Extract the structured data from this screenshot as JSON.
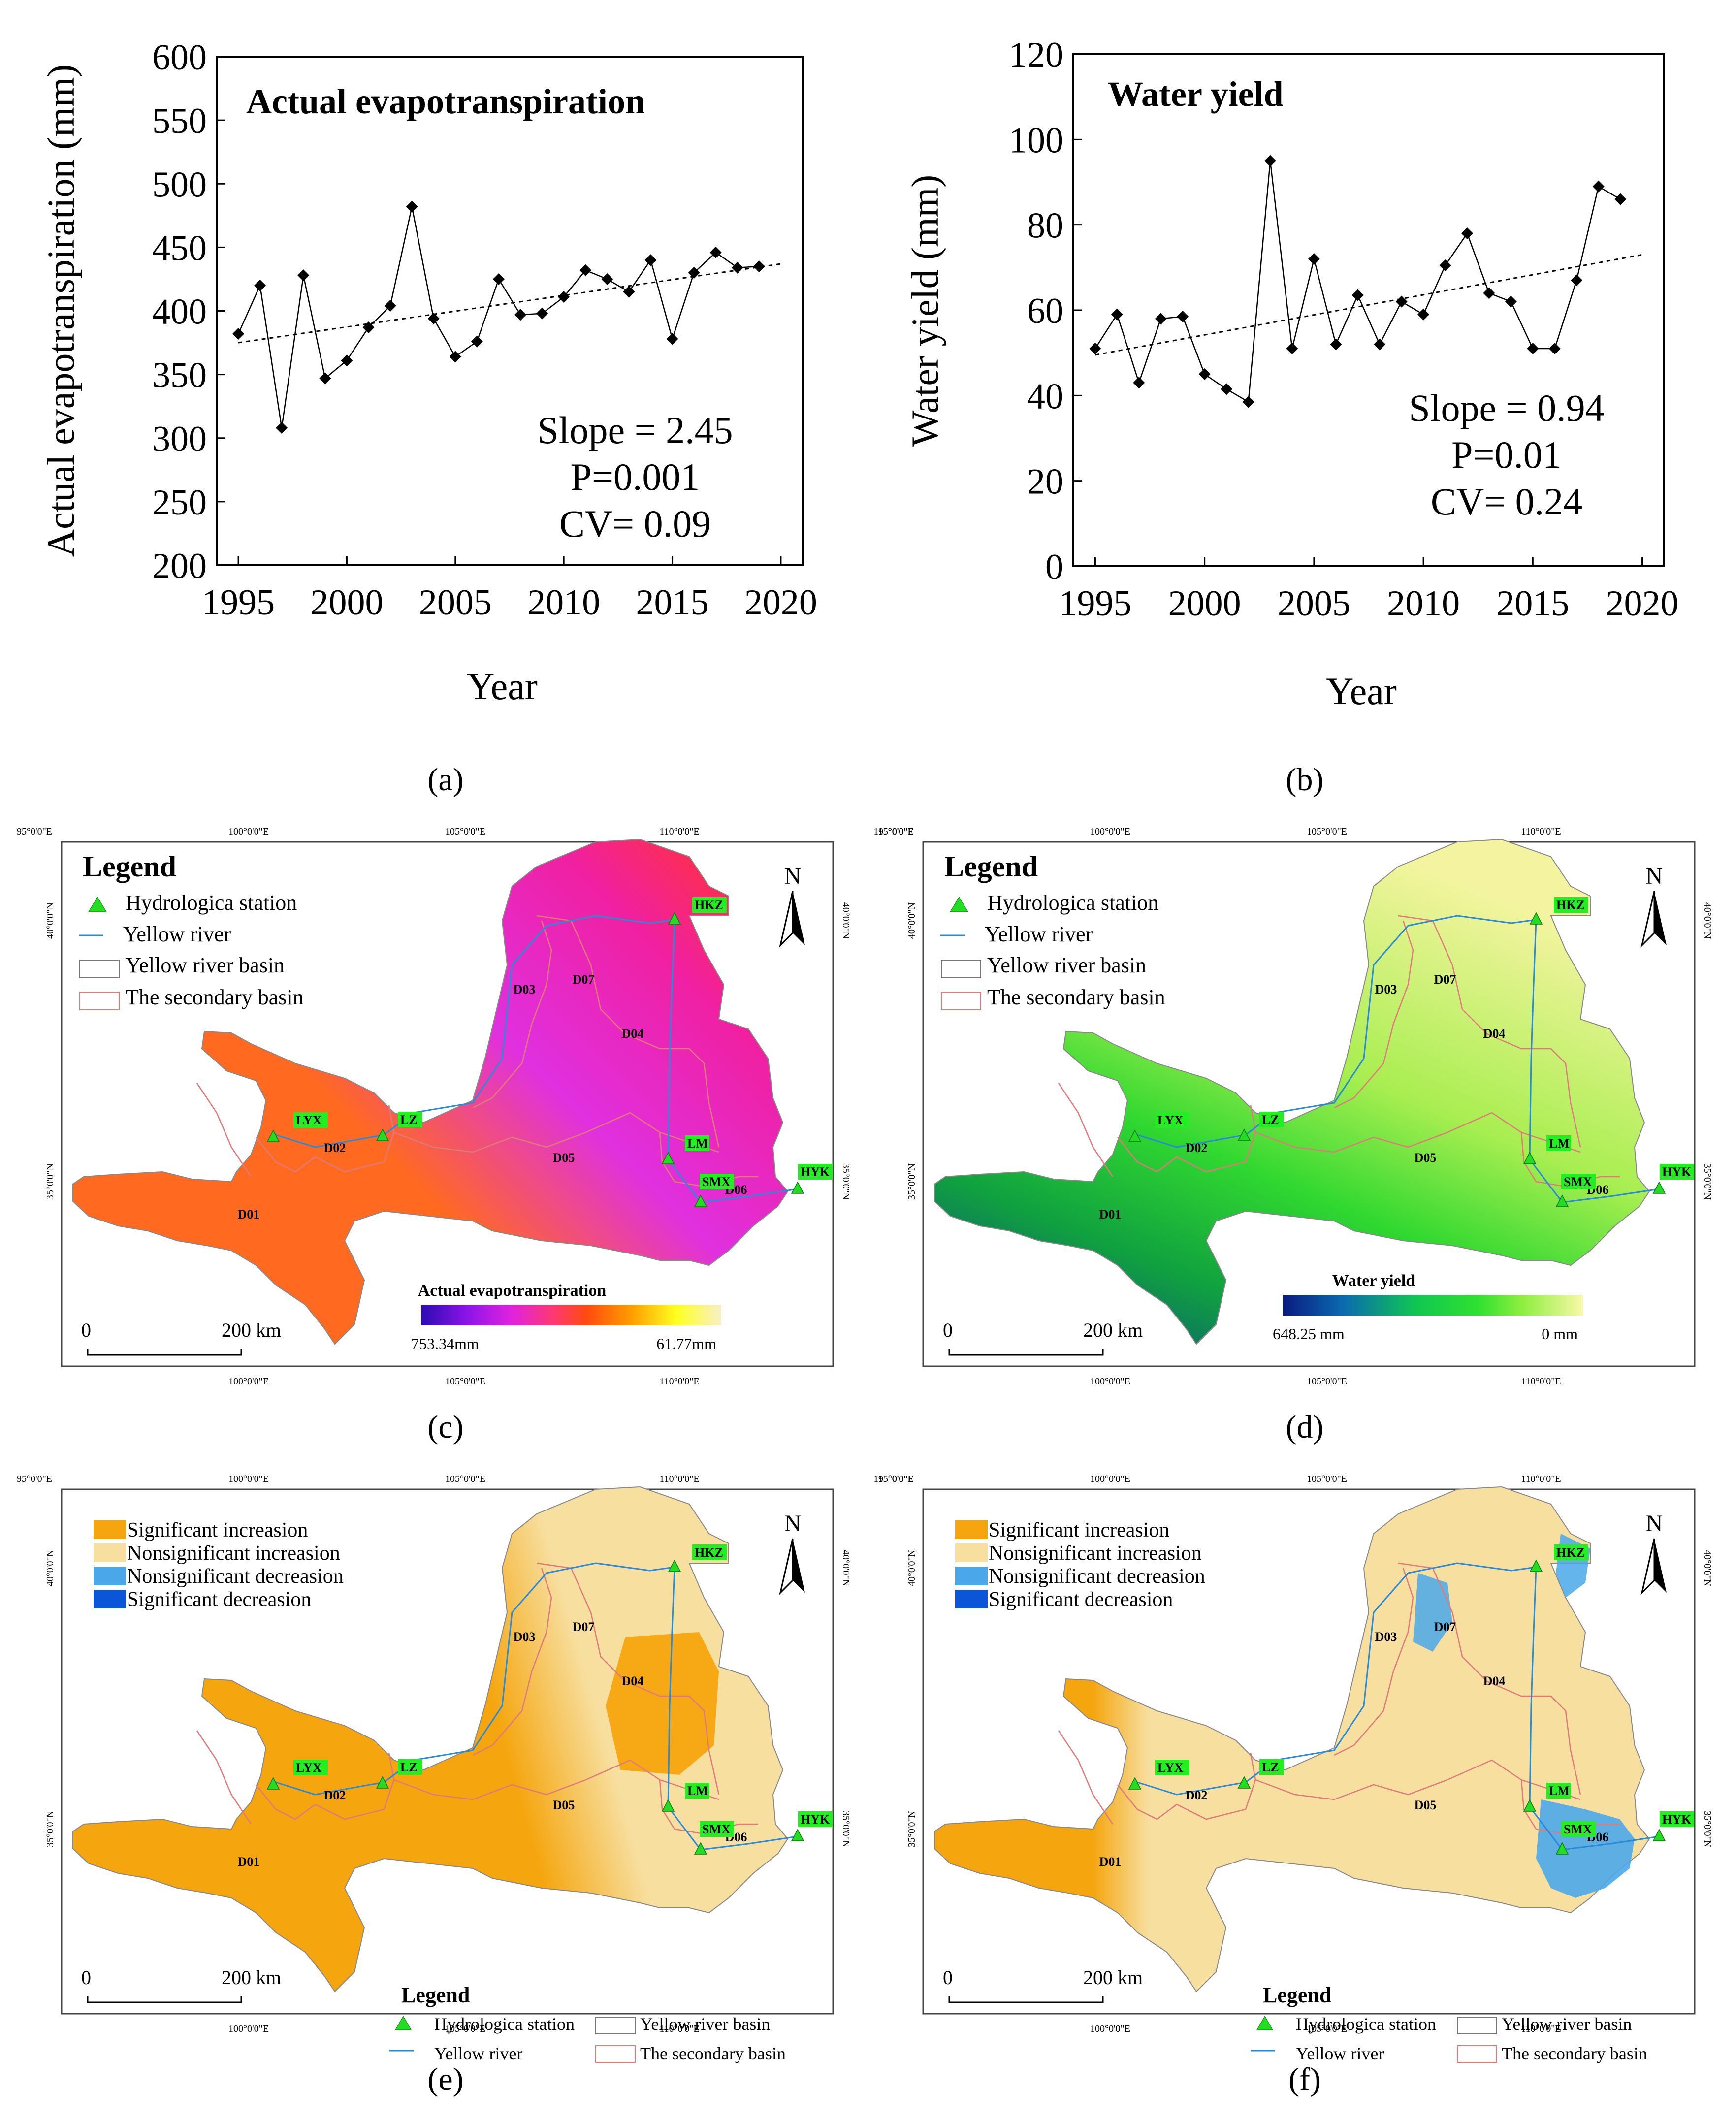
{
  "chart_data": [
    {
      "panel": "(a)",
      "type": "line",
      "title": "Actual evapotranspiration",
      "xlabel": "Year",
      "ylabel": "Actual evapotranspiration (mm)",
      "xlim": [
        1994,
        2021
      ],
      "ylim": [
        200,
        600
      ],
      "xticks": [
        "1995",
        "2000",
        "2005",
        "2010",
        "2015",
        "2020"
      ],
      "yticks": [
        "200",
        "250",
        "300",
        "350",
        "400",
        "450",
        "500",
        "550",
        "600"
      ],
      "x": [
        1995,
        1996,
        1997,
        1998,
        1999,
        2000,
        2001,
        2002,
        2003,
        2004,
        2005,
        2006,
        2007,
        2008,
        2009,
        2010,
        2011,
        2012,
        2013,
        2014,
        2015,
        2016,
        2017,
        2018,
        2019
      ],
      "values": [
        382,
        420,
        308,
        428,
        347,
        361,
        387,
        404,
        482,
        394,
        364,
        376,
        425,
        397,
        398,
        411,
        432,
        425,
        415,
        440,
        378,
        430,
        446,
        434,
        435
      ],
      "trend": {
        "from": [
          1995,
          375
        ],
        "to": [
          2020,
          437
        ]
      },
      "stats": [
        "Slope = 2.45",
        "P=0.001",
        "CV= 0.09"
      ]
    },
    {
      "panel": "(b)",
      "type": "line",
      "title": "Water yield",
      "xlabel": "Year",
      "ylabel": "Water yield (mm)",
      "xlim": [
        1994,
        2021
      ],
      "ylim": [
        0,
        120
      ],
      "xticks": [
        "1995",
        "2000",
        "2005",
        "2010",
        "2015",
        "2020"
      ],
      "yticks": [
        "0",
        "20",
        "40",
        "60",
        "80",
        "100",
        "120"
      ],
      "x": [
        1995,
        1996,
        1997,
        1998,
        1999,
        2000,
        2001,
        2002,
        2003,
        2004,
        2005,
        2006,
        2007,
        2008,
        2009,
        2010,
        2011,
        2012,
        2013,
        2014,
        2015,
        2016,
        2017,
        2018,
        2019
      ],
      "values": [
        51,
        59,
        43,
        58,
        58.5,
        45,
        41.5,
        38.5,
        95,
        51,
        72,
        52,
        63.5,
        52,
        62,
        59,
        70.5,
        78,
        64,
        62,
        51,
        51,
        67,
        89,
        86
      ],
      "trend": {
        "from": [
          1995,
          49.5
        ],
        "to": [
          2020,
          73
        ]
      },
      "stats": [
        "Slope = 0.94",
        "P=0.01",
        "CV= 0.24"
      ]
    }
  ],
  "panel_labels": [
    "(a)",
    "(b)",
    "(c)",
    "(d)",
    "(e)",
    "(f)"
  ],
  "maps": {
    "lon_top": [
      "95°0'0\"E",
      "100°0'0\"E",
      "105°0'0\"E",
      "110°0'0\"E",
      "115°0'0\"E"
    ],
    "lon_bottom": [
      "100°0'0\"E",
      "105°0'0\"E",
      "110°0'0\"E"
    ],
    "lat": [
      "40°0'0\"N",
      "35°0'0\"N"
    ],
    "north": "N",
    "scale_zero": "0",
    "scale_label": "200 km",
    "stations": [
      "HKZ",
      "LYX",
      "LZ",
      "LM",
      "SMX",
      "HYK"
    ],
    "subbasins": [
      "D01",
      "D02",
      "D03",
      "D04",
      "D05",
      "D06",
      "D07"
    ],
    "legend_title": "Legend",
    "legend_items": [
      "Hydrologica station",
      "Yellow river",
      "Yellow river basin",
      "The secondary basin"
    ],
    "trend_classes": [
      "Significant increasion",
      "Nonsignificant increasion",
      "Nonsignificant decreasion",
      "Significant decreasion"
    ],
    "c": {
      "colorbar_title": "Actual evapotranspiration",
      "min": "753.34mm",
      "max": "61.77mm"
    },
    "d": {
      "colorbar_title": "Water yield",
      "min": "648.25 mm",
      "max": "0 mm"
    }
  },
  "colors": {
    "aet_ramp": [
      "#2b0bb0",
      "#8a14e8",
      "#e022e0",
      "#ff3a6a",
      "#ff4a10",
      "#ff9c00",
      "#ffff20",
      "#f8f0c8"
    ],
    "wy_ramp": [
      "#0a1a80",
      "#0a6ab0",
      "#10c850",
      "#30e030",
      "#90ee40",
      "#f8f8a8"
    ],
    "sig_increase": "#f5a50d",
    "nonsig_increase": "#f7dfa0",
    "nonsig_decrease": "#4aa8ea",
    "sig_decrease": "#0a55d8",
    "station_label_bg": "#22ee22",
    "station_marker": "#22dd22",
    "river": "#2a8ad8",
    "subbasin_line": "#e07a7a"
  }
}
